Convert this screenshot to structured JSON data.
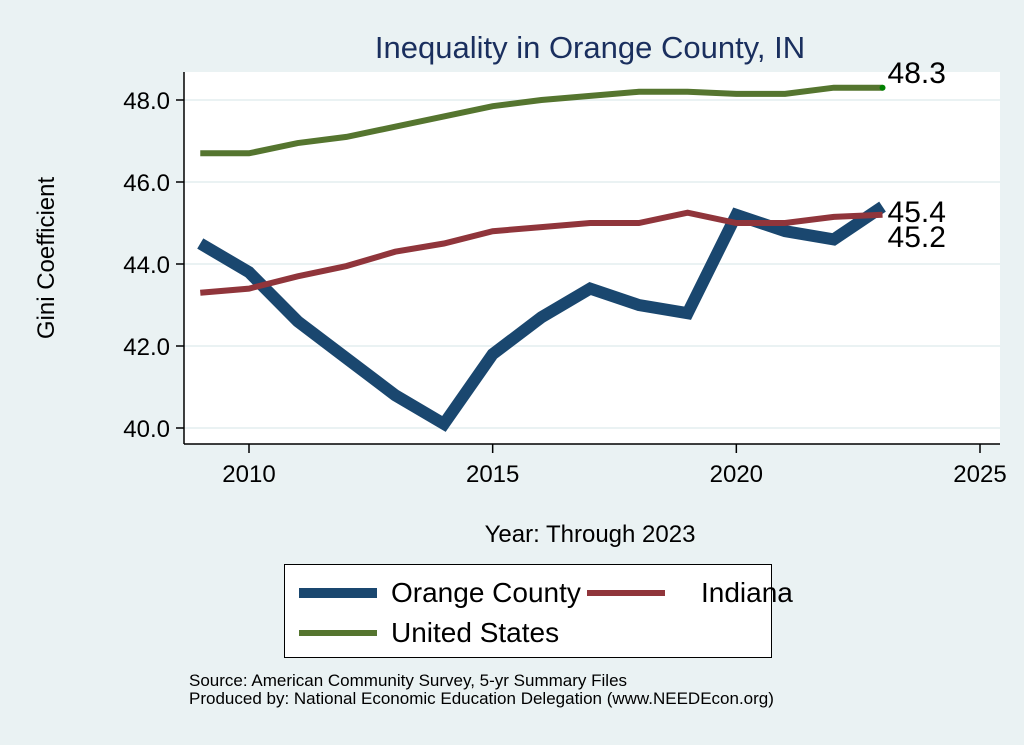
{
  "chart_data": {
    "type": "line",
    "title": "Inequality in Orange County, IN",
    "xlabel": "Year: Through 2023",
    "ylabel": "Gini Coefficient",
    "x": [
      2009,
      2010,
      2011,
      2012,
      2013,
      2014,
      2015,
      2016,
      2017,
      2018,
      2019,
      2020,
      2021,
      2022,
      2023
    ],
    "xlim": [
      2008.3,
      2025.2
    ],
    "ylim": [
      39.6,
      48.7
    ],
    "xticks": [
      2010,
      2015,
      2020,
      2025
    ],
    "xtick_labels": [
      "2010",
      "2015",
      "2020",
      "2025"
    ],
    "yticks": [
      40,
      42,
      44,
      46,
      48
    ],
    "ytick_labels": [
      "40.0",
      "42.0",
      "44.0",
      "46.0",
      "48.0"
    ],
    "grid": true,
    "series": [
      {
        "name": "Orange County",
        "color": "#1a476f",
        "values": [
          44.5,
          43.8,
          42.6,
          41.7,
          40.8,
          40.1,
          41.8,
          42.7,
          43.4,
          43.0,
          42.8,
          45.2,
          44.8,
          44.6,
          45.4
        ],
        "end_label": "45.4"
      },
      {
        "name": "Indiana",
        "color": "#90353b",
        "values": [
          43.3,
          43.4,
          43.7,
          43.95,
          44.3,
          44.5,
          44.8,
          44.9,
          45.0,
          45.0,
          45.25,
          45.0,
          45.0,
          45.15,
          45.2
        ],
        "end_label": "45.2"
      },
      {
        "name": "United States",
        "color": "#55752f",
        "values": [
          46.7,
          46.7,
          46.95,
          47.1,
          47.35,
          47.6,
          47.85,
          48.0,
          48.1,
          48.2,
          48.2,
          48.15,
          48.15,
          48.3,
          48.3
        ],
        "end_label": "48.3"
      }
    ],
    "legend": {
      "placement": "bottom",
      "entries": [
        "Orange County",
        "Indiana",
        "United States"
      ]
    }
  },
  "source": {
    "line1": "Source: American Community Survey, 5-yr Summary Files",
    "line2": "Produced by: National Economic Education Delegation (www.NEEDEcon.org)"
  },
  "colors": {
    "background": "#eaf2f3",
    "plot_background": "#ffffff",
    "title": "#1a2f5e",
    "endpoint_marker": "#008000"
  }
}
